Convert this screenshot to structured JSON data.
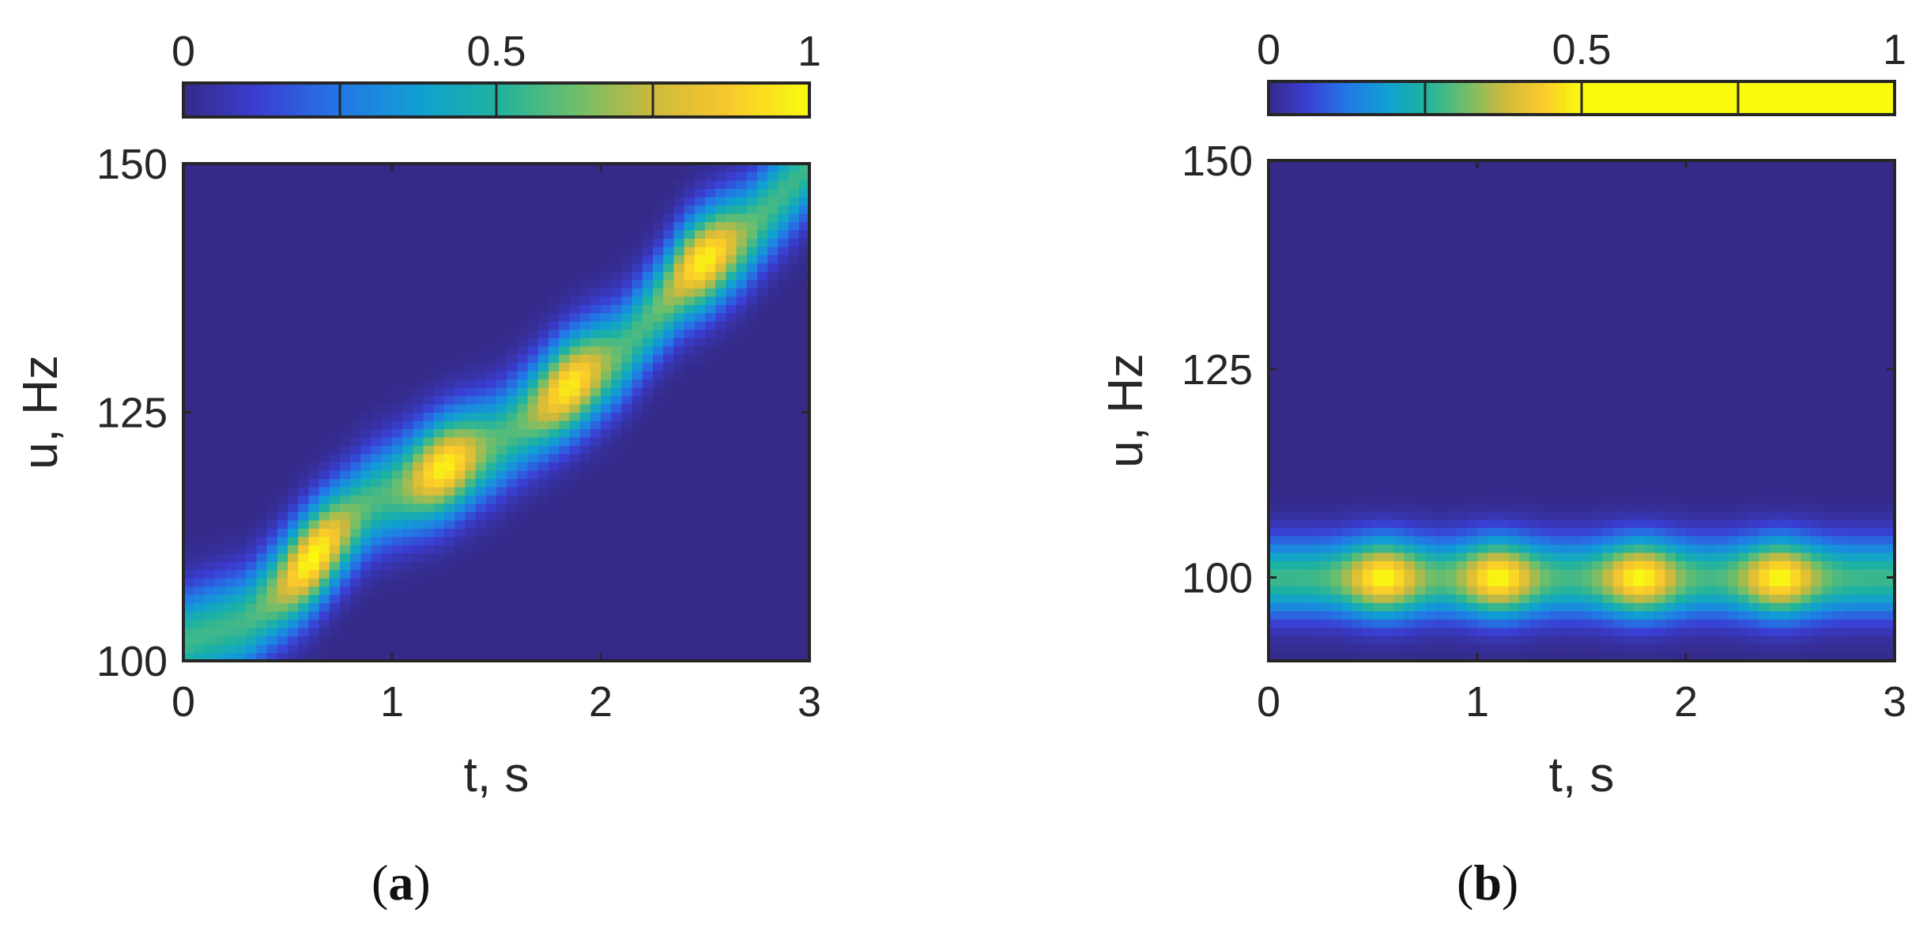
{
  "figure": {
    "panels": [
      {
        "caption_open": "(",
        "caption_letter": "a",
        "caption_close": ")"
      },
      {
        "caption_open": "(",
        "caption_letter": "b",
        "caption_close": ")"
      }
    ]
  },
  "chart_data": [
    {
      "type": "heatmap",
      "xlabel": "t, s",
      "ylabel": "u, Hz",
      "xlim": [
        0,
        3
      ],
      "ylim": [
        100,
        150
      ],
      "xticks": [
        0,
        1,
        2,
        3
      ],
      "yticks": [
        100,
        125,
        150
      ],
      "colorbar": {
        "ticks": [
          0,
          0.5,
          1
        ],
        "range": [
          0,
          1
        ],
        "location": "top",
        "segments": 4
      },
      "ridge": {
        "description_points_t": [
          0.0,
          0.3,
          0.6,
          0.9,
          1.2,
          1.5,
          1.8,
          2.1,
          2.4,
          2.7,
          3.0
        ],
        "u": [
          102,
          104,
          110,
          116,
          119,
          122,
          127,
          131,
          139,
          143,
          150
        ]
      },
      "peaks": [
        {
          "t": 0.62,
          "u": 110,
          "level": 1.0
        },
        {
          "t": 1.25,
          "u": 119,
          "level": 0.95
        },
        {
          "t": 1.85,
          "u": 128,
          "level": 0.92
        },
        {
          "t": 2.5,
          "u": 140,
          "level": 0.95
        }
      ]
    },
    {
      "type": "heatmap",
      "xlabel": "t, s",
      "ylabel": "u, Hz",
      "xlim": [
        0,
        3
      ],
      "ylim": [
        90,
        150
      ],
      "xticks": [
        0,
        1,
        2,
        3
      ],
      "yticks": [
        100,
        125,
        150
      ],
      "colorbar": {
        "ticks": [
          0,
          0.5,
          1
        ],
        "range": [
          0,
          1
        ],
        "location": "top",
        "segments": 4
      },
      "ridge": {
        "description_points_t": [
          0.0,
          0.5,
          1.0,
          1.5,
          2.0,
          2.5,
          3.0
        ],
        "u": [
          100,
          100,
          100,
          100,
          100,
          100,
          100
        ]
      },
      "peaks": [
        {
          "t": 0.55,
          "u": 100,
          "level": 1.0
        },
        {
          "t": 1.1,
          "u": 100,
          "level": 1.0
        },
        {
          "t": 1.78,
          "u": 100,
          "level": 1.0
        },
        {
          "t": 2.45,
          "u": 100,
          "level": 1.0
        }
      ]
    }
  ]
}
